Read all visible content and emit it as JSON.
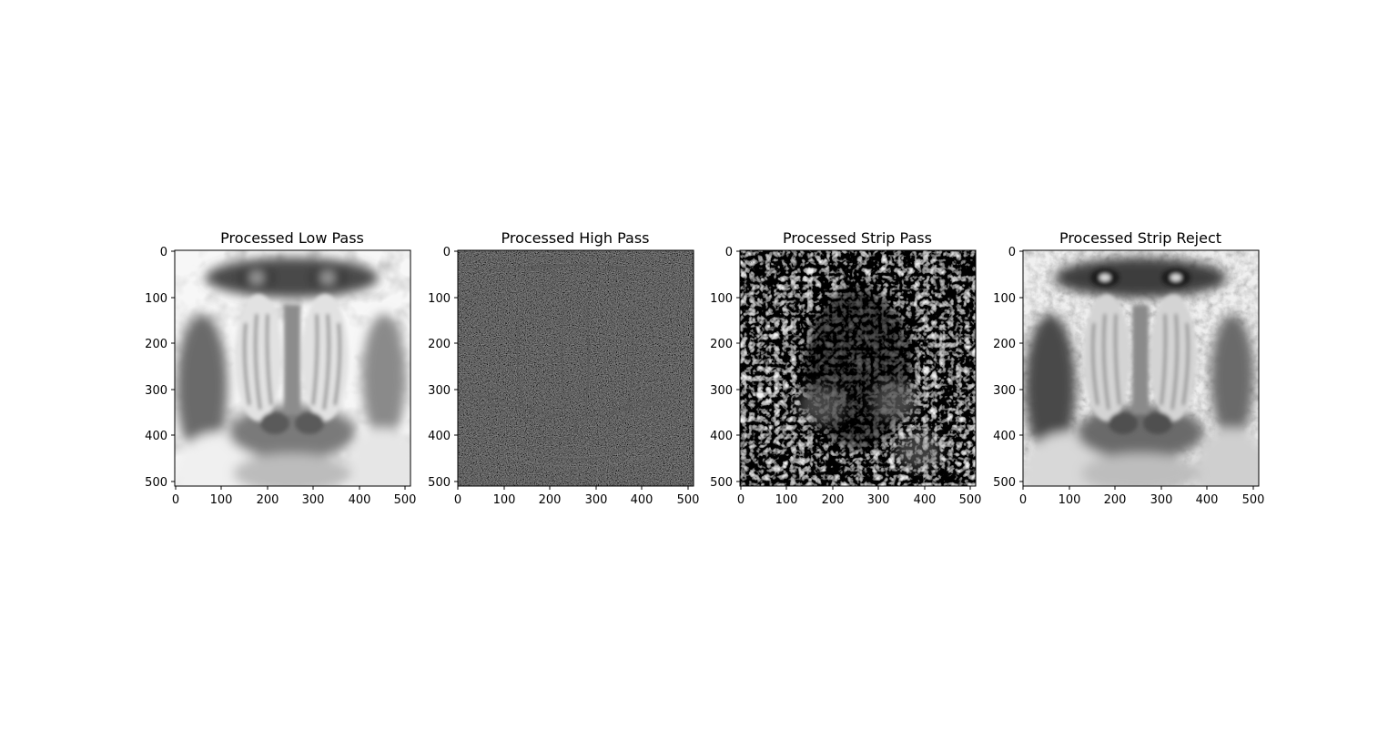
{
  "figure": {
    "panels": [
      {
        "id": "low-pass",
        "title": "Processed Low Pass",
        "image_tone": "bright",
        "x_ticks": [
          "0",
          "100",
          "200",
          "300",
          "400",
          "500"
        ],
        "y_ticks": [
          "0",
          "100",
          "200",
          "300",
          "400",
          "500"
        ]
      },
      {
        "id": "high-pass",
        "title": "Processed High Pass",
        "image_tone": "edges",
        "x_ticks": [
          "0",
          "100",
          "200",
          "300",
          "400",
          "500"
        ],
        "y_ticks": [
          "0",
          "100",
          "200",
          "300",
          "400",
          "500"
        ]
      },
      {
        "id": "strip-pass",
        "title": "Processed Strip Pass",
        "image_tone": "speckle",
        "x_ticks": [
          "0",
          "100",
          "200",
          "300",
          "400",
          "500"
        ],
        "y_ticks": [
          "0",
          "100",
          "200",
          "300",
          "400",
          "500"
        ]
      },
      {
        "id": "strip-reject",
        "title": "Processed Strip Reject",
        "image_tone": "detailed",
        "x_ticks": [
          "0",
          "100",
          "200",
          "300",
          "400",
          "500"
        ],
        "y_ticks": [
          "0",
          "100",
          "200",
          "300",
          "400",
          "500"
        ]
      }
    ]
  }
}
